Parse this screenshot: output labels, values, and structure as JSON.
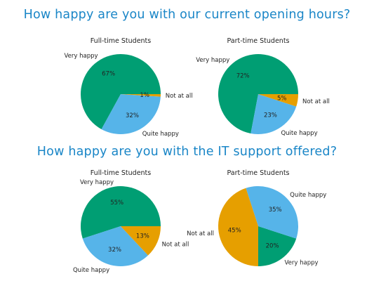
{
  "sections": [
    {
      "title": "How happy are you with our current opening hours?"
    },
    {
      "title": "How happy are you with the IT support offered?"
    }
  ],
  "colors": {
    "Very happy": "#009e73",
    "Quite happy": "#56b4e9",
    "Not at all": "#e69f00"
  },
  "chart_data": [
    {
      "type": "pie",
      "section": 0,
      "title": "Full-time Students",
      "labels": [
        "Very happy",
        "Quite happy",
        "Not at all"
      ],
      "values": [
        67,
        32,
        1
      ],
      "pct_labels": [
        "67%",
        "32%",
        "1%"
      ]
    },
    {
      "type": "pie",
      "section": 0,
      "title": "Part-time Students",
      "labels": [
        "Very happy",
        "Quite happy",
        "Not at all"
      ],
      "values": [
        72,
        23,
        5
      ],
      "pct_labels": [
        "72%",
        "23%",
        "5%"
      ]
    },
    {
      "type": "pie",
      "section": 1,
      "title": "Full-time Students",
      "labels": [
        "Very happy",
        "Quite happy",
        "Not at all"
      ],
      "values": [
        55,
        32,
        13
      ],
      "pct_labels": [
        "55%",
        "32%",
        "13%"
      ]
    },
    {
      "type": "pie",
      "section": 1,
      "title": "Part-time Students",
      "labels": [
        "Very happy",
        "Quite happy",
        "Not at all"
      ],
      "values": [
        20,
        35,
        45
      ],
      "pct_labels": [
        "20%",
        "35%",
        "45%"
      ]
    }
  ]
}
